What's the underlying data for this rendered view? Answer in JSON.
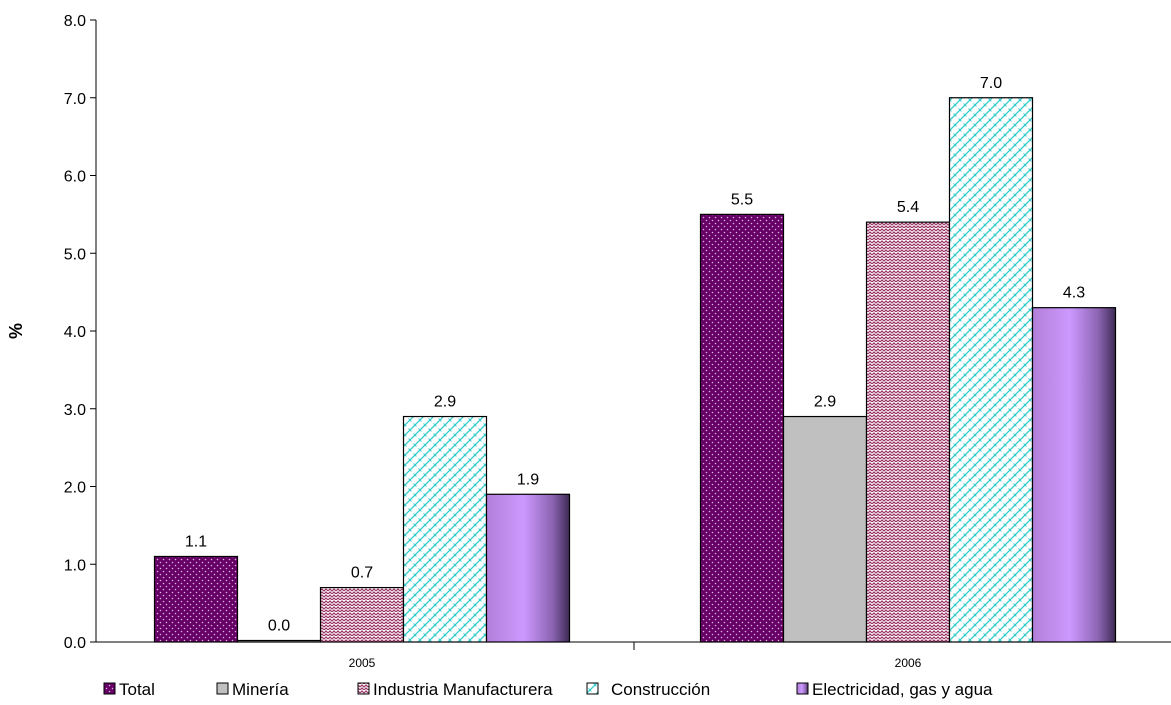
{
  "chart_data": {
    "type": "bar",
    "categories": [
      "2005",
      "2006"
    ],
    "series": [
      {
        "name": "Total",
        "values": [
          1.1,
          5.5
        ],
        "color": "#660066",
        "pattern": "dots"
      },
      {
        "name": "Minería",
        "values": [
          0.0,
          2.9
        ],
        "color": "#c0c0c0",
        "pattern": "solid"
      },
      {
        "name": "Industria Manufacturera",
        "values": [
          0.7,
          5.4
        ],
        "color": "#993366",
        "pattern": "zigzag"
      },
      {
        "name": "Construcción",
        "values": [
          2.9,
          7.0
        ],
        "color": "#33cccc",
        "pattern": "brick"
      },
      {
        "name": "Electricidad, gas y agua",
        "values": [
          1.9,
          4.3
        ],
        "color": "#cc99ff",
        "pattern": "gradient"
      }
    ],
    "value_labels": [
      [
        "1.1",
        "5.5"
      ],
      [
        "0.0",
        "2.9"
      ],
      [
        "0.7",
        "5.4"
      ],
      [
        "2.9",
        "7.0"
      ],
      [
        "1.9",
        "4.3"
      ]
    ],
    "yticks": [
      "0.0",
      "1.0",
      "2.0",
      "3.0",
      "4.0",
      "5.0",
      "6.0",
      "7.0",
      "8.0"
    ],
    "ylim": [
      0,
      8
    ],
    "ylabel": "%",
    "xlabel": "",
    "title": "",
    "grid": false,
    "legend_position": "bottom"
  }
}
